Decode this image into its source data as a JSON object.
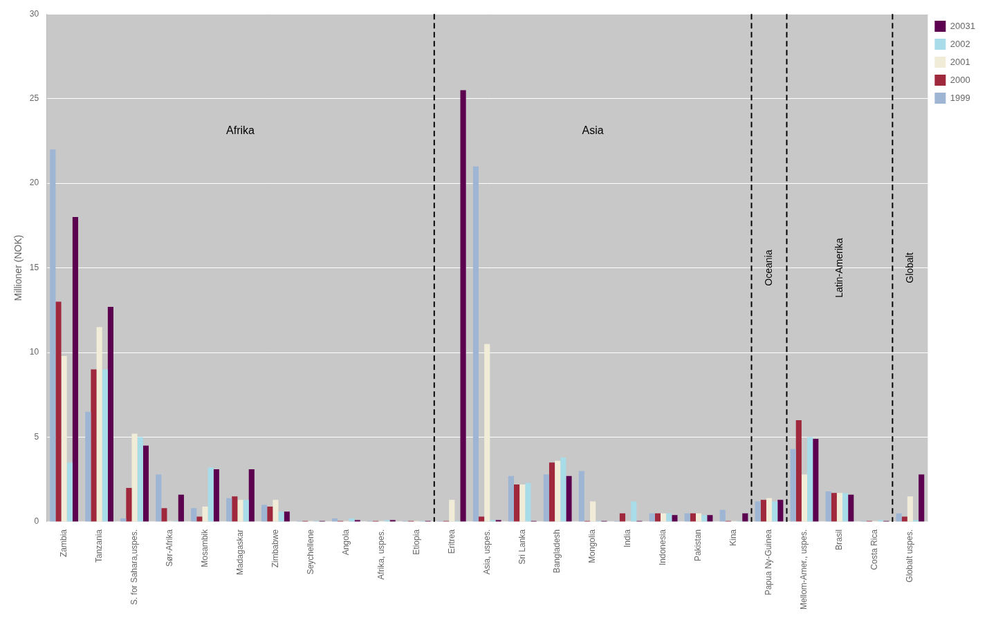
{
  "chart_data": {
    "type": "bar",
    "categories": [
      "Zambia",
      "Tanzania",
      "S. for Sahara,uspes.",
      "Sør-Afrika",
      "Mosambik",
      "Madagaskar",
      "Zimbabwe",
      "Seychellene",
      "Angola",
      "Afrika, uspes.",
      "Etiopia",
      "Eritrea",
      "Asia, uspes.",
      "Sri Lanka",
      "Bangladesh",
      "Mongolia",
      "India",
      "Indonesia",
      "Pakistan",
      "Kina",
      "Papua Ny-Guinea",
      "Mellom-Amer., uspes.",
      "Brasil",
      "Costa Rica",
      "Globalt uspes."
    ],
    "series": [
      {
        "name": "1999",
        "color": "#9EB6D4",
        "values": [
          22.0,
          6.5,
          0.2,
          2.8,
          0.8,
          1.4,
          1.0,
          0.05,
          0.2,
          0.05,
          0.05,
          0.05,
          21.0,
          2.7,
          2.8,
          3.0,
          0.05,
          0.5,
          0.5,
          0.7,
          1.2,
          4.3,
          1.8,
          0.05,
          0.5
        ]
      },
      {
        "name": "2000",
        "color": "#A0283C",
        "values": [
          13.0,
          9.0,
          2.0,
          0.8,
          0.3,
          1.5,
          0.9,
          0.05,
          0.05,
          0.05,
          0.05,
          0.05,
          0.3,
          2.2,
          3.5,
          0.05,
          0.5,
          0.5,
          0.5,
          0.05,
          1.3,
          6.0,
          1.7,
          0.05,
          0.3
        ]
      },
      {
        "name": "2001",
        "color": "#F0ECD8",
        "values": [
          9.8,
          11.5,
          5.2,
          0.05,
          0.9,
          1.3,
          1.3,
          0.05,
          0.05,
          0.05,
          0.05,
          1.3,
          10.5,
          2.2,
          3.6,
          1.2,
          0.05,
          0.5,
          0.5,
          0.05,
          1.4,
          2.8,
          1.7,
          0.05,
          1.5
        ]
      },
      {
        "name": "2002",
        "color": "#A8DCE8",
        "values": [
          3.5,
          9.0,
          5.0,
          0.05,
          3.2,
          1.3,
          0.6,
          0.05,
          0.2,
          0.1,
          0.05,
          0.05,
          0.1,
          2.3,
          3.8,
          0.05,
          1.2,
          0.5,
          0.4,
          0.05,
          1.2,
          5.0,
          1.7,
          0.1,
          0.1
        ]
      },
      {
        "name": "20031",
        "color": "#5C0050",
        "values": [
          18.0,
          12.7,
          4.5,
          1.6,
          3.1,
          3.1,
          0.6,
          0.05,
          0.1,
          0.1,
          0.05,
          25.5,
          0.1,
          0.05,
          2.7,
          0.05,
          0.05,
          0.4,
          0.4,
          0.5,
          1.3,
          4.9,
          1.6,
          0.05,
          2.8
        ]
      }
    ],
    "ylabel": "Millioner (NOK)",
    "ylim": [
      0,
      30
    ],
    "yticks": [
      0,
      5,
      10,
      15,
      20,
      25,
      30
    ],
    "grid": true,
    "legend": "upper right",
    "annotations": [
      {
        "text": "Afrika",
        "first": "Zambia",
        "last": "Etiopia"
      },
      {
        "text": "Asia",
        "first": "Eritrea",
        "last": "Kina"
      },
      {
        "text": "Oceania",
        "first": "Papua Ny-Guinea",
        "last": "Papua Ny-Guinea"
      },
      {
        "text": "Latin-Amerika",
        "first": "Mellom-Amer., uspes.",
        "last": "Costa Rica"
      },
      {
        "text": "Globalt",
        "first": "Globalt uspes.",
        "last": "Globalt uspes."
      }
    ]
  }
}
